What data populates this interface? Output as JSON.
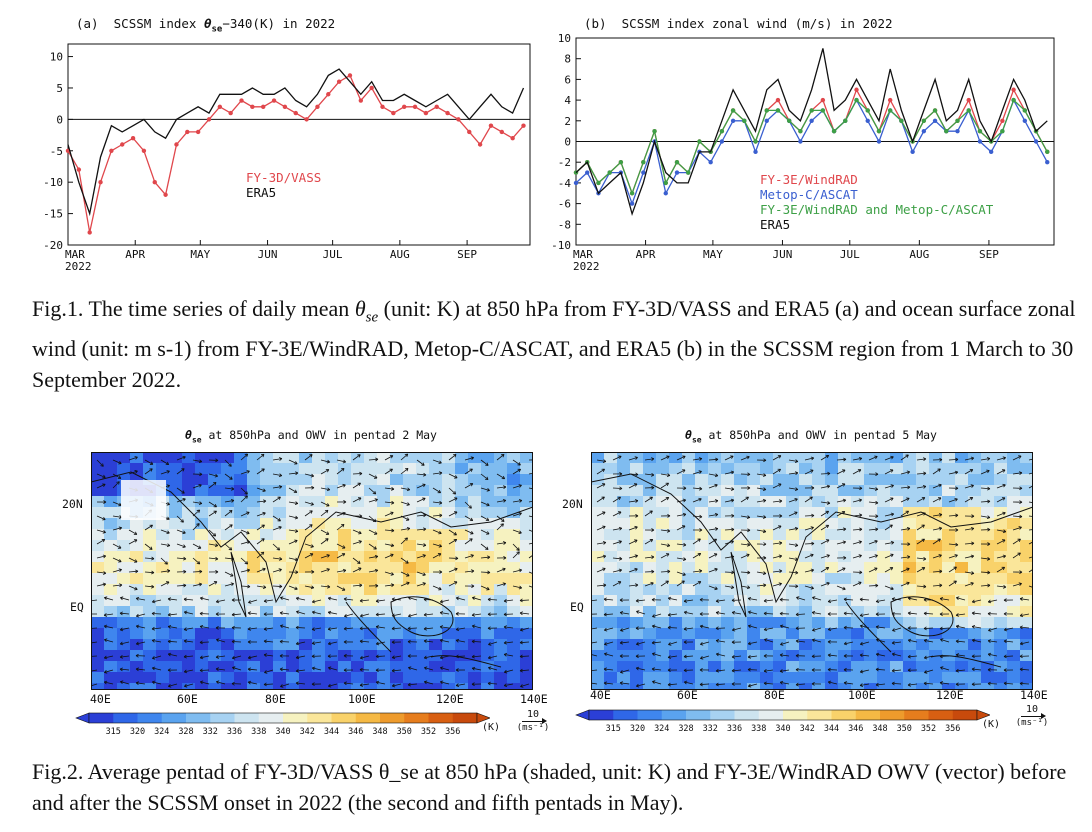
{
  "chart_data": [
    {
      "type": "line",
      "panel": "(a)",
      "title": "SCSSM index θse−340(K) in 2022",
      "title_prefix": "SCSSM index ",
      "title_symbol": "θ",
      "title_subscript": "se",
      "title_suffix": "−340(K) in 2022",
      "x_tick_labels": [
        "MAR",
        "APR",
        "MAY",
        "JUN",
        "JUL",
        "AUG",
        "SEP"
      ],
      "x_year_label": "2022",
      "x_tick_days": [
        0,
        31,
        61,
        92,
        122,
        153,
        184
      ],
      "xlim": [
        0,
        213
      ],
      "ylim": [
        -20,
        12
      ],
      "y_ticks": [
        10,
        5,
        0,
        -5,
        -10,
        -15,
        -20
      ],
      "zero_line": true,
      "legend_position": "center-left",
      "series": [
        {
          "name": "FY-3D/VASS",
          "color": "#e0474c",
          "markers": true,
          "x_days": [
            0,
            5,
            10,
            15,
            20,
            25,
            30,
            35,
            40,
            45,
            50,
            55,
            60,
            65,
            70,
            75,
            80,
            85,
            90,
            95,
            100,
            105,
            110,
            115,
            120,
            125,
            130,
            135,
            140,
            145,
            150,
            155,
            160,
            165,
            170,
            175,
            180,
            185,
            190,
            195,
            200,
            205,
            210
          ],
          "values": [
            -5,
            -8,
            -18,
            -10,
            -5,
            -4,
            -3,
            -5,
            -10,
            -12,
            -4,
            -2,
            -2,
            0,
            2,
            1,
            3,
            2,
            2,
            3,
            2,
            1,
            0,
            2,
            4,
            6,
            7,
            3,
            5,
            2,
            1,
            2,
            2,
            1,
            2,
            1,
            0,
            -2,
            -4,
            -1,
            -2,
            -3,
            -1
          ]
        },
        {
          "name": "ERA5",
          "color": "#111111",
          "markers": false,
          "x_days": [
            0,
            5,
            10,
            15,
            20,
            25,
            30,
            35,
            40,
            45,
            50,
            55,
            60,
            65,
            70,
            75,
            80,
            85,
            90,
            95,
            100,
            105,
            110,
            115,
            120,
            125,
            130,
            135,
            140,
            145,
            150,
            155,
            160,
            165,
            170,
            175,
            180,
            185,
            190,
            195,
            200,
            205,
            210
          ],
          "values": [
            -4,
            -10,
            -15,
            -6,
            -1,
            -2,
            -1,
            0,
            -2,
            -3,
            0,
            1,
            2,
            1,
            4,
            4,
            4,
            5,
            4,
            4,
            5,
            3,
            2,
            4,
            7,
            8,
            6,
            4,
            6,
            3,
            3,
            4,
            3,
            2,
            3,
            4,
            2,
            0,
            2,
            4,
            2,
            1,
            5
          ]
        }
      ]
    },
    {
      "type": "line",
      "panel": "(b)",
      "title": "SCSSM index zonal wind (m/s) in 2022",
      "x_tick_labels": [
        "MAR",
        "APR",
        "MAY",
        "JUN",
        "JUL",
        "AUG",
        "SEP"
      ],
      "x_year_label": "2022",
      "x_tick_days": [
        0,
        31,
        61,
        92,
        122,
        153,
        184
      ],
      "xlim": [
        0,
        213
      ],
      "ylim": [
        -10,
        10
      ],
      "y_ticks": [
        10,
        8,
        6,
        4,
        2,
        0,
        -2,
        -4,
        -6,
        -8,
        -10
      ],
      "zero_line": true,
      "legend_position": "lower-center",
      "series": [
        {
          "name": "FY-3E/WindRAD",
          "color": "#e0474c",
          "markers": true,
          "x_days": [
            0,
            5,
            10,
            15,
            20,
            25,
            30,
            35,
            40,
            45,
            50,
            55,
            60,
            65,
            70,
            75,
            80,
            85,
            90,
            95,
            100,
            105,
            110,
            115,
            120,
            125,
            130,
            135,
            140,
            145,
            150,
            155,
            160,
            165,
            170,
            175,
            180,
            185,
            190,
            195,
            200,
            205,
            210
          ],
          "values": [
            -3,
            -2,
            -4,
            -3,
            -2,
            -5,
            -2,
            1,
            -4,
            -2,
            -3,
            0,
            -1,
            1,
            3,
            2,
            0,
            3,
            4,
            2,
            1,
            3,
            4,
            1,
            2,
            5,
            3,
            1,
            4,
            2,
            0,
            2,
            3,
            1,
            2,
            4,
            1,
            0,
            2,
            5,
            3,
            1,
            -1
          ]
        },
        {
          "name": "Metop-C/ASCAT",
          "color": "#3a5fd0",
          "markers": true,
          "x_days": [
            0,
            5,
            10,
            15,
            20,
            25,
            30,
            35,
            40,
            45,
            50,
            55,
            60,
            65,
            70,
            75,
            80,
            85,
            90,
            95,
            100,
            105,
            110,
            115,
            120,
            125,
            130,
            135,
            140,
            145,
            150,
            155,
            160,
            165,
            170,
            175,
            180,
            185,
            190,
            195,
            200,
            205,
            210
          ],
          "values": [
            -4,
            -3,
            -5,
            -3,
            -3,
            -6,
            -3,
            0,
            -5,
            -3,
            -3,
            -1,
            -2,
            0,
            2,
            2,
            -1,
            2,
            3,
            2,
            0,
            2,
            3,
            1,
            2,
            4,
            2,
            0,
            3,
            2,
            -1,
            1,
            2,
            1,
            1,
            3,
            0,
            -1,
            1,
            4,
            2,
            0,
            -2
          ]
        },
        {
          "name": "FY-3E/WindRAD and Metop-C/ASCAT",
          "color": "#3da046",
          "markers": true,
          "x_days": [
            0,
            5,
            10,
            15,
            20,
            25,
            30,
            35,
            40,
            45,
            50,
            55,
            60,
            65,
            70,
            75,
            80,
            85,
            90,
            95,
            100,
            105,
            110,
            115,
            120,
            125,
            130,
            135,
            140,
            145,
            150,
            155,
            160,
            165,
            170,
            175,
            180,
            185,
            190,
            195,
            200,
            205,
            210
          ],
          "values": [
            -3,
            -2,
            -4,
            -3,
            -2,
            -5,
            -2,
            1,
            -4,
            -2,
            -3,
            0,
            -1,
            1,
            3,
            2,
            0,
            3,
            3,
            2,
            1,
            3,
            3,
            1,
            2,
            4,
            3,
            1,
            3,
            2,
            0,
            2,
            3,
            1,
            2,
            3,
            1,
            0,
            1,
            4,
            3,
            1,
            -1
          ]
        },
        {
          "name": "ERA5",
          "color": "#111111",
          "markers": false,
          "x_days": [
            0,
            5,
            10,
            15,
            20,
            25,
            30,
            35,
            40,
            45,
            50,
            55,
            60,
            65,
            70,
            75,
            80,
            85,
            90,
            95,
            100,
            105,
            110,
            115,
            120,
            125,
            130,
            135,
            140,
            145,
            150,
            155,
            160,
            165,
            170,
            175,
            180,
            185,
            190,
            195,
            200,
            205,
            210
          ],
          "values": [
            -3,
            -2,
            -5,
            -4,
            -3,
            -7,
            -4,
            0,
            -3,
            -4,
            -4,
            -1,
            -1,
            2,
            5,
            3,
            1,
            5,
            6,
            3,
            2,
            5,
            9,
            3,
            4,
            6,
            4,
            2,
            7,
            3,
            0,
            3,
            6,
            2,
            3,
            6,
            2,
            0,
            3,
            6,
            4,
            1,
            2
          ]
        }
      ]
    }
  ],
  "fig1_caption": "Fig.1. The time series of daily mean  θse  (unit: K) at 850 hPa from FY-3D/VASS and ERA5 (a) and ocean surface zonal wind (unit: m s-1) from FY-3E/WindRAD, Metop-C/ASCAT, and ERA5 (b) in the SCSSM region from 1 March to 30 September 2022.",
  "fig1_caption_parts": {
    "before": "Fig.1. The time series of daily mean ",
    "symbol": "θ",
    "subscript": "se",
    "after": " (unit: K) at 850 hPa from FY-3D/VASS and ERA5 (a) and ocean surface zonal wind (unit: m s-1) from FY-3E/WindRAD, Metop-C/ASCAT, and ERA5 (b) in the SCSSM region from 1 March to 30 September 2022."
  },
  "maps": [
    {
      "title": "θse at 850hPa and OWV in pentad 2 May",
      "title_symbol": "θ",
      "title_subscript": "se",
      "title_suffix": " at 850hPa and OWV in pentad 2 May",
      "lat_labels": [
        "20N",
        "EQ"
      ],
      "lon_labels": [
        "40E",
        "60E",
        "80E",
        "100E",
        "120E",
        "140E"
      ]
    },
    {
      "title": "θse at 850hPa and OWV in pentad 5 May",
      "title_symbol": "θ",
      "title_subscript": "se",
      "title_suffix": " at 850hPa and OWV in pentad 5 May",
      "lat_labels": [
        "20N",
        "EQ"
      ],
      "lon_labels": [
        "40E",
        "60E",
        "80E",
        "100E",
        "120E",
        "140E"
      ]
    }
  ],
  "colorbar": {
    "levels": [
      "315",
      "320",
      "324",
      "328",
      "332",
      "336",
      "338",
      "340",
      "342",
      "344",
      "346",
      "348",
      "350",
      "352",
      "356"
    ],
    "unit": "(K)",
    "colors": [
      "#2b3fd6",
      "#2f67e8",
      "#3f86ee",
      "#5aa3ef",
      "#7fbcf0",
      "#a7d2f2",
      "#cde4f0",
      "#e6eef0",
      "#f6f2c0",
      "#fae69a",
      "#f9d26a",
      "#f5b944",
      "#ee9b2c",
      "#e67d1d",
      "#d85f12",
      "#c84a0c"
    ],
    "vector_ref_value": "10",
    "vector_unit": "(ms⁻¹)"
  },
  "fig2_caption": "Fig.2. Average pentad of FY-3D/VASS θ_se at 850 hPa (shaded, unit: K) and FY-3E/WindRAD OWV (vector) before and after the SCSSM onset in 2022 (the second and fifth pentads in May)."
}
